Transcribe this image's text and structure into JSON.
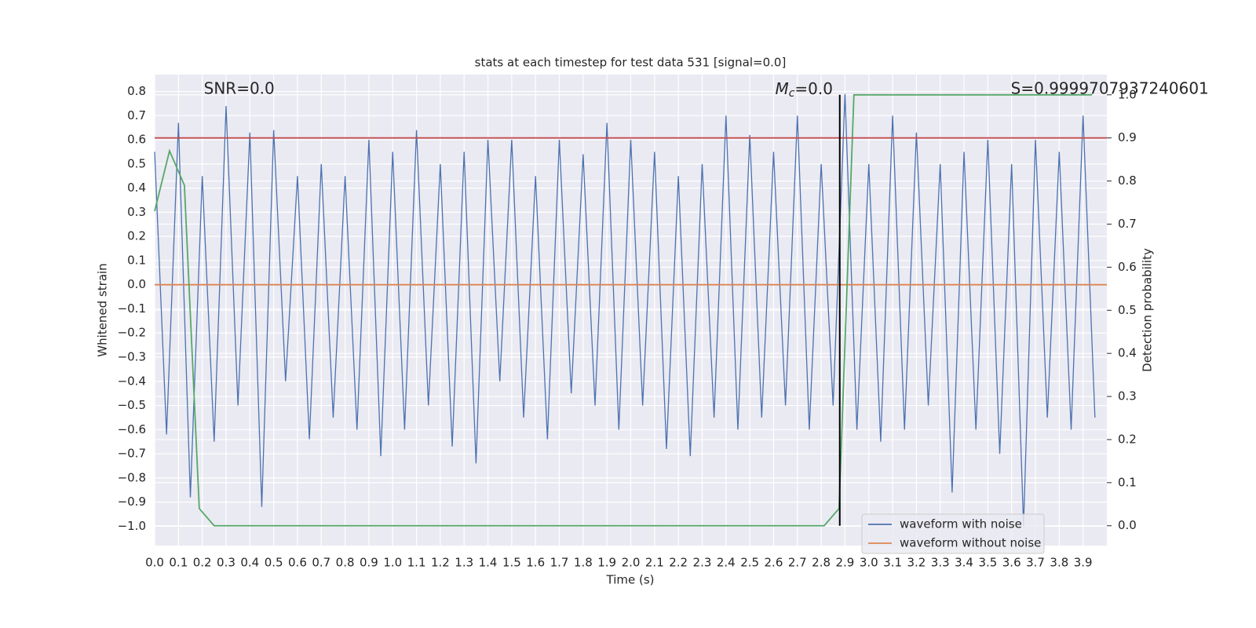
{
  "chart_data": {
    "type": "line",
    "title": "stats at each timestep for test data 531 [signal=0.0]",
    "x_label": "Time (s)",
    "y_label": "Whitened strain",
    "y2_label": "Detection probability",
    "annotations": [
      {
        "text": "SNR=0.0",
        "x": 0.2
      },
      {
        "base": "M",
        "sub": "c",
        "suffix": "=0.0",
        "x": 2.6
      },
      {
        "text": "S=0.9999707937240601",
        "x": 3.59
      }
    ],
    "xlim": [
      0,
      4.0
    ],
    "ylim": [
      -1.08,
      0.87
    ],
    "y2lim": [
      -0.046,
      1.047
    ],
    "xticks": [
      {
        "value": 0,
        "label": "0.0"
      },
      0.1,
      0.2,
      0.3,
      0.4,
      0.5,
      0.6,
      0.7,
      0.8,
      0.9,
      {
        "value": 1,
        "label": "1.0"
      },
      1.1,
      1.2,
      1.3,
      1.4,
      1.5,
      1.6,
      1.7,
      1.8,
      1.9,
      {
        "value": 2,
        "label": "2.0"
      },
      2.1,
      2.2,
      2.3,
      2.4,
      2.5,
      2.6,
      2.7,
      2.8,
      2.9,
      {
        "value": 3,
        "label": "3.0"
      },
      3.1,
      3.2,
      3.3,
      3.4,
      3.5,
      3.6,
      3.7,
      3.8,
      3.9
    ],
    "yticks": [
      0.8,
      0.7,
      0.6,
      0.5,
      0.4,
      0.3,
      0.2,
      0.1,
      {
        "value": 0,
        "label": "0.0"
      },
      {
        "value": -0.1,
        "label": "−0.1"
      },
      {
        "value": -0.2,
        "label": "−0.2"
      },
      {
        "value": -0.3,
        "label": "−0.3"
      },
      {
        "value": -0.4,
        "label": "−0.4"
      },
      {
        "value": -0.5,
        "label": "−0.5"
      },
      {
        "value": -0.6,
        "label": "−0.6"
      },
      {
        "value": -0.7,
        "label": "−0.7"
      },
      {
        "value": -0.8,
        "label": "−0.8"
      },
      {
        "value": -0.9,
        "label": "−0.9"
      },
      {
        "value": -1.0,
        "label": "−1.0"
      }
    ],
    "y2ticks": [
      {
        "value": 0,
        "label": "0.0"
      },
      0.1,
      0.2,
      0.3,
      0.4,
      0.5,
      0.6,
      0.7,
      0.8,
      0.9,
      {
        "value": 1,
        "label": "1.0"
      }
    ],
    "grid": true,
    "legend": "lower right",
    "series": [
      {
        "name": "waveform with noise",
        "color": "#4c72b0",
        "x": [
          0,
          0.05,
          0.1,
          0.15,
          0.2,
          0.25,
          0.3,
          0.35,
          0.4,
          0.45,
          0.5,
          0.55,
          0.6,
          0.65,
          0.7,
          0.75,
          0.8,
          0.85,
          0.9,
          0.95,
          1.0,
          1.05,
          1.1,
          1.15,
          1.2,
          1.25,
          1.3,
          1.35,
          1.4,
          1.45,
          1.5,
          1.55,
          1.6,
          1.65,
          1.7,
          1.75,
          1.8,
          1.85,
          1.9,
          1.95,
          2.0,
          2.05,
          2.1,
          2.15,
          2.2,
          2.25,
          2.3,
          2.35,
          2.4,
          2.45,
          2.5,
          2.55,
          2.6,
          2.65,
          2.7,
          2.75,
          2.8,
          2.85,
          2.9,
          2.95,
          3.0,
          3.05,
          3.1,
          3.15,
          3.2,
          3.25,
          3.3,
          3.35,
          3.4,
          3.45,
          3.5,
          3.55,
          3.6,
          3.65,
          3.7,
          3.75,
          3.8,
          3.85,
          3.9,
          3.95
        ],
        "values": [
          0.55,
          -0.62,
          0.67,
          -0.88,
          0.45,
          -0.65,
          0.74,
          -0.5,
          0.63,
          -0.92,
          0.64,
          -0.4,
          0.45,
          -0.64,
          0.5,
          -0.55,
          0.45,
          -0.6,
          0.6,
          -0.71,
          0.55,
          -0.6,
          0.64,
          -0.5,
          0.5,
          -0.67,
          0.55,
          -0.74,
          0.6,
          -0.4,
          0.6,
          -0.55,
          0.45,
          -0.64,
          0.6,
          -0.45,
          0.54,
          -0.5,
          0.67,
          -0.6,
          0.6,
          -0.5,
          0.55,
          -0.68,
          0.45,
          -0.71,
          0.5,
          -0.55,
          0.7,
          -0.6,
          0.62,
          -0.55,
          0.55,
          -0.5,
          0.7,
          -0.6,
          0.5,
          -0.5,
          0.79,
          -0.6,
          0.5,
          -0.65,
          0.7,
          -0.6,
          0.63,
          -0.5,
          0.5,
          -0.86,
          0.55,
          -0.6,
          0.6,
          -0.7,
          0.5,
          -1.0,
          0.6,
          -0.55,
          0.55,
          -0.6,
          0.7,
          -0.55
        ]
      },
      {
        "name": "waveform without noise",
        "color": "#dd8452",
        "x": [
          0,
          4.0
        ],
        "values": [
          0,
          0
        ]
      },
      {
        "color": "#55a868",
        "axis": "y2",
        "x": [
          0,
          0.0625,
          0.125,
          0.1875,
          0.25,
          2.8125,
          2.875,
          2.9375,
          3.9375
        ],
        "values": [
          0.73,
          0.87,
          0.79,
          0.04,
          0.0,
          0.0,
          0.04,
          1.0,
          1.0
        ]
      }
    ],
    "hlines": [
      {
        "value": 0.9,
        "axis": "y2",
        "color": "#c44e52"
      }
    ],
    "vlines": [
      {
        "value": 2.878,
        "color": "#000000"
      }
    ]
  }
}
